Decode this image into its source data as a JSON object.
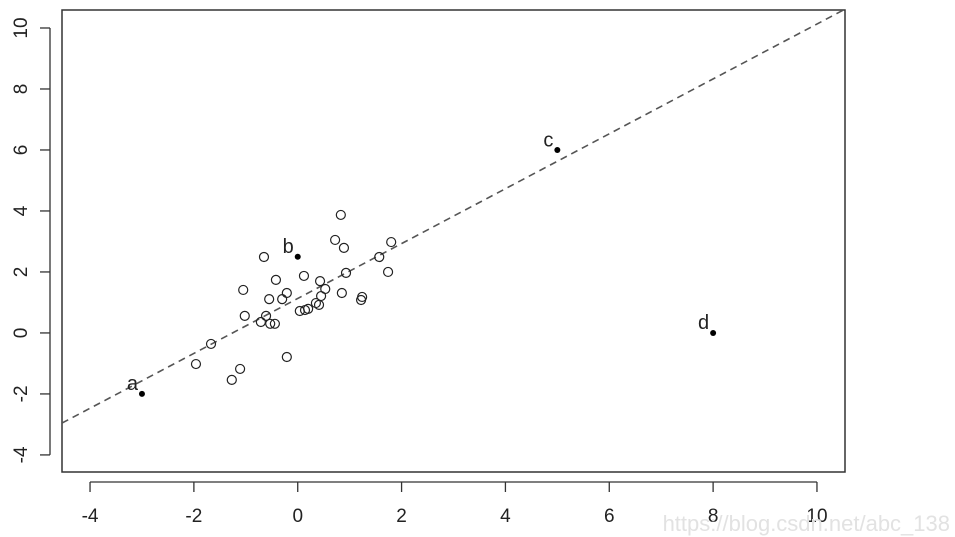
{
  "chart_data": {
    "type": "scatter",
    "xlim": [
      -4.54,
      10.54
    ],
    "ylim": [
      -4.56,
      10.59
    ],
    "xticks": [
      -4,
      -2,
      0,
      2,
      4,
      6,
      8,
      10
    ],
    "yticks": [
      -4,
      -2,
      0,
      2,
      4,
      6,
      8,
      10
    ],
    "series": [
      {
        "name": null,
        "color": "#222222",
        "marker": "open",
        "x": [
          0.83,
          0.72,
          0.89,
          1.8,
          -0.65,
          1.57,
          -1.05,
          0.12,
          -0.42,
          0.93,
          1.74,
          0.43,
          0.53,
          -0.21,
          -0.3,
          -0.55,
          0.45,
          0.85,
          1.24,
          1.22,
          0.41,
          0.35,
          0.14,
          0.04,
          0.2,
          -1.02,
          -0.61,
          -0.71,
          -0.53,
          -0.44,
          -1.67,
          -1.96,
          -1.11,
          -1.27,
          -0.21
        ],
        "values": [
          3.87,
          3.05,
          2.79,
          2.98,
          2.49,
          2.49,
          1.41,
          1.87,
          1.74,
          1.97,
          2.0,
          1.7,
          1.44,
          1.31,
          1.11,
          1.11,
          1.21,
          1.31,
          1.18,
          1.08,
          0.92,
          0.98,
          0.75,
          0.72,
          0.79,
          0.56,
          0.56,
          0.36,
          0.3,
          0.3,
          -0.36,
          -1.02,
          -1.18,
          -1.54,
          -0.79
        ]
      },
      {
        "name": null,
        "color": "#000000",
        "marker": "filled",
        "x": [
          -3,
          0,
          5,
          8
        ],
        "values": [
          -2,
          2.5,
          6,
          0
        ],
        "labels": [
          "a",
          "b",
          "c",
          "d"
        ]
      }
    ],
    "abline": {
      "intercept": 1.13,
      "slope": 0.9,
      "color": "#555555"
    },
    "watermark": "https://blog.csdn.net/abc_138"
  }
}
